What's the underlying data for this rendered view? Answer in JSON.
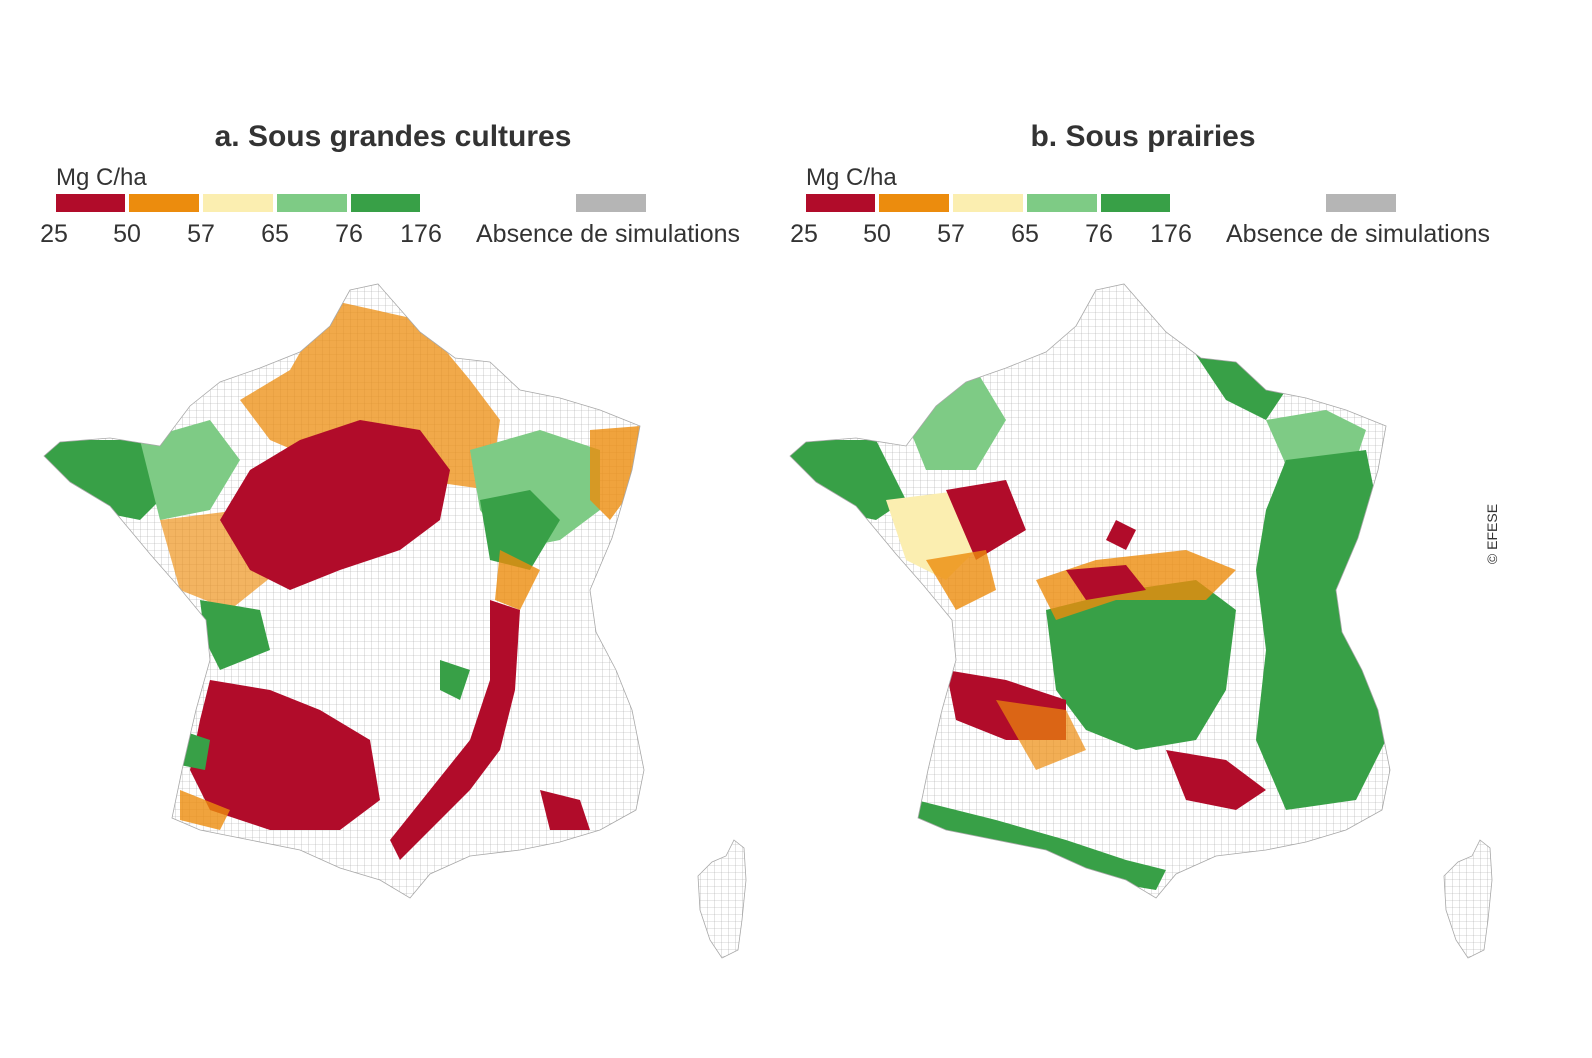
{
  "colors": {
    "c1": "#b10c2a",
    "c2": "#ec8c0d",
    "c3": "#fbeeb0",
    "c4": "#7ecb85",
    "c5": "#38a047",
    "absence": "#b5b5b5",
    "grid_outline": "#a8a8a8"
  },
  "legend": {
    "unit": "Mg C/ha",
    "ticks": [
      "25",
      "50",
      "57",
      "65",
      "76",
      "176"
    ],
    "absence_label": "Absence de simulations"
  },
  "panels": [
    {
      "id": "a",
      "title": "a. Sous grandes cultures"
    },
    {
      "id": "b",
      "title": "b. Sous prairies"
    }
  ],
  "credit": "© EFESE"
}
